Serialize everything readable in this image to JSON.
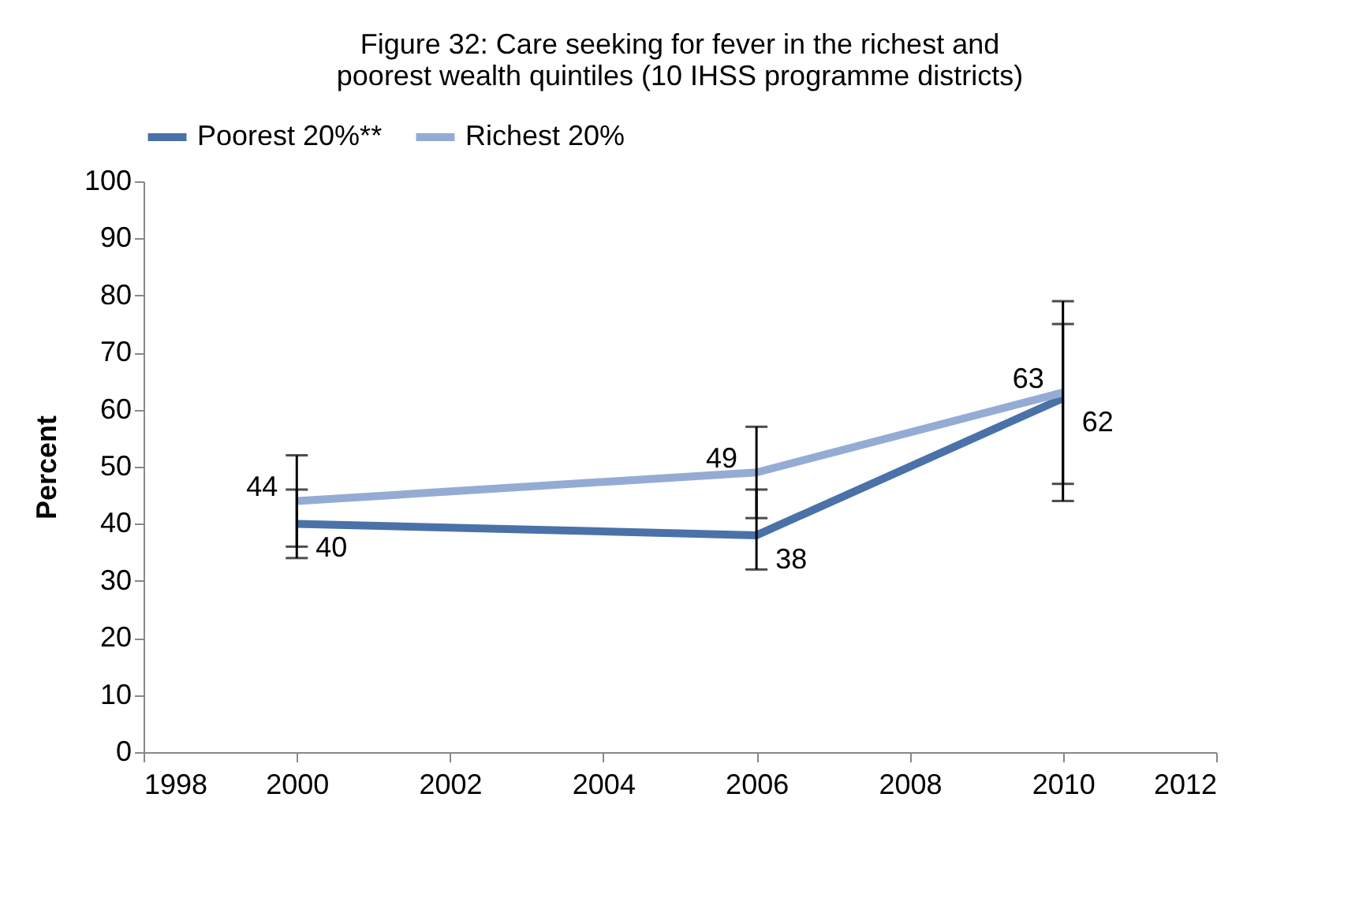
{
  "chart_data": {
    "type": "line",
    "title": "Figure 32: Care seeking for fever in the richest and poorest wealth quintiles (10 IHSS programme districts)",
    "ylabel": "Percent",
    "x": [
      2000,
      2006,
      2010
    ],
    "series": [
      {
        "name": "Poorest 20%**",
        "color": "#4a72a8",
        "values": [
          40,
          38,
          62
        ],
        "errors": [
          [
            34,
            46
          ],
          [
            32,
            46
          ],
          [
            44,
            75
          ]
        ]
      },
      {
        "name": "Richest 20%",
        "color": "#94acd4",
        "values": [
          44,
          49,
          63
        ],
        "errors": [
          [
            36,
            52
          ],
          [
            41,
            57
          ],
          [
            47,
            79
          ]
        ]
      }
    ],
    "xlim": [
      1998,
      2012
    ],
    "xticks": [
      1998,
      2000,
      2002,
      2004,
      2006,
      2008,
      2010,
      2012
    ],
    "ylim": [
      0,
      100
    ],
    "yticks": [
      0,
      10,
      20,
      30,
      40,
      50,
      60,
      70,
      80,
      90,
      100
    ],
    "grid": false,
    "legend": "top",
    "data_labels": true,
    "line_style": "solid"
  }
}
